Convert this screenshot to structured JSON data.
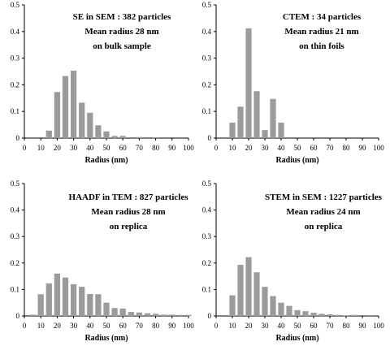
{
  "chart_data": [
    {
      "type": "bar",
      "annotation": [
        "SE in SEM : 382 particles",
        "Mean radius 28 nm",
        "on bulk sample"
      ],
      "xlabel": "Radius (nm)",
      "ylabel": "",
      "xlim": [
        0,
        100
      ],
      "ylim": [
        0,
        0.5
      ],
      "xticks": [
        "0",
        "10",
        "20",
        "30",
        "40",
        "50",
        "60",
        "70",
        "80",
        "90",
        "100"
      ],
      "yticks": [
        "0",
        "0.1",
        "0.2",
        "0.3",
        "0.4",
        "0.5"
      ],
      "x": [
        10,
        15,
        20,
        25,
        30,
        35,
        40,
        45,
        50,
        55,
        60,
        65,
        70,
        75,
        80,
        85,
        90
      ],
      "values": [
        0.0,
        0.028,
        0.173,
        0.233,
        0.253,
        0.133,
        0.095,
        0.048,
        0.025,
        0.008,
        0.008,
        0.0,
        0.004,
        0.0,
        0.003,
        0.0,
        0.0
      ]
    },
    {
      "type": "bar",
      "annotation": [
        "CTEM : 34 particles",
        "Mean radius 21 nm",
        "on thin foils"
      ],
      "xlabel": "Radius (nm)",
      "ylabel": "",
      "xlim": [
        0,
        100
      ],
      "ylim": [
        0,
        0.5
      ],
      "xticks": [
        "0",
        "10",
        "20",
        "30",
        "40",
        "50",
        "60",
        "70",
        "80",
        "90",
        "100"
      ],
      "yticks": [
        "0",
        "0.1",
        "0.2",
        "0.3",
        "0.4",
        "0.5"
      ],
      "x": [
        10,
        15,
        20,
        25,
        30,
        35,
        40
      ],
      "values": [
        0.058,
        0.118,
        0.412,
        0.176,
        0.03,
        0.147,
        0.058
      ]
    },
    {
      "type": "bar",
      "annotation": [
        "HAADF in TEM : 827 particles",
        "Mean radius 28 nm",
        "on replica"
      ],
      "xlabel": "Radius (nm)",
      "ylabel": "",
      "xlim": [
        0,
        100
      ],
      "ylim": [
        0,
        0.5
      ],
      "xticks": [
        "0",
        "10",
        "20",
        "30",
        "40",
        "50",
        "60",
        "70",
        "80",
        "90",
        "100"
      ],
      "yticks": [
        "0",
        "0.1",
        "0.2",
        "0.3",
        "0.4",
        "0.5"
      ],
      "x": [
        5,
        10,
        15,
        20,
        25,
        30,
        35,
        40,
        45,
        50,
        55,
        60,
        65,
        70,
        75,
        80,
        85,
        90,
        95,
        100
      ],
      "values": [
        0.005,
        0.082,
        0.123,
        0.16,
        0.145,
        0.12,
        0.11,
        0.083,
        0.082,
        0.05,
        0.03,
        0.028,
        0.015,
        0.013,
        0.01,
        0.008,
        0.005,
        0.005,
        0.004,
        0.004
      ]
    },
    {
      "type": "bar",
      "annotation": [
        "STEM in SEM : 1227 particles",
        "Mean radius 24 nm",
        "on replica"
      ],
      "xlabel": "Radius (nm)",
      "ylabel": "",
      "xlim": [
        0,
        100
      ],
      "ylim": [
        0,
        0.5
      ],
      "xticks": [
        "0",
        "10",
        "20",
        "30",
        "40",
        "50",
        "60",
        "70",
        "80",
        "90",
        "100"
      ],
      "yticks": [
        "0",
        "0.1",
        "0.2",
        "0.3",
        "0.4",
        "0.5"
      ],
      "x": [
        10,
        15,
        20,
        25,
        30,
        35,
        40,
        45,
        50,
        55,
        60,
        65,
        70,
        75,
        80,
        85,
        90,
        95
      ],
      "values": [
        0.078,
        0.193,
        0.222,
        0.165,
        0.11,
        0.075,
        0.05,
        0.038,
        0.022,
        0.018,
        0.012,
        0.008,
        0.006,
        0.004,
        0.002,
        0.004,
        0.0,
        0.003
      ]
    }
  ]
}
